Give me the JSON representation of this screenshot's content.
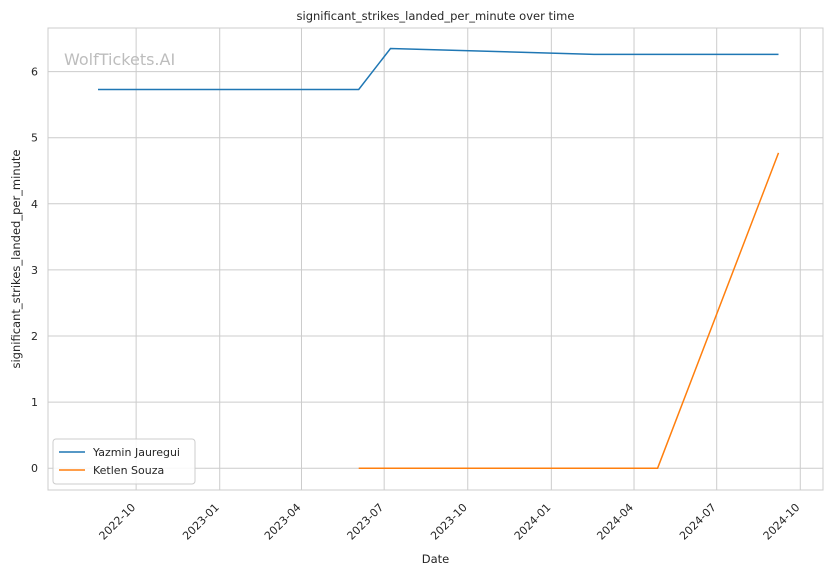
{
  "watermark": "WolfTickets.AI",
  "chart_data": {
    "type": "line",
    "title": "significant_strikes_landed_per_minute over time",
    "xlabel": "Date",
    "ylabel": "significant_strikes_landed_per_minute",
    "x_ticks": [
      "2022-10",
      "2023-01",
      "2023-04",
      "2023-07",
      "2023-10",
      "2024-01",
      "2024-04",
      "2024-07",
      "2024-10"
    ],
    "y_ticks": [
      0,
      1,
      2,
      3,
      4,
      5,
      6
    ],
    "xlim": [
      "2022-06-26",
      "2024-10-26"
    ],
    "ylim": [
      -0.33,
      6.66
    ],
    "grid": true,
    "legend_position": "lower-left",
    "series": [
      {
        "name": "Yazmin Jauregui",
        "color": "#1f77b4",
        "x": [
          "2022-08-20",
          "2023-06-03",
          "2023-07-08",
          "2024-02-17",
          "2024-09-07"
        ],
        "y": [
          5.73,
          5.73,
          6.35,
          6.26,
          6.26
        ]
      },
      {
        "name": "Ketlen Souza",
        "color": "#ff7f0e",
        "x": [
          "2023-06-03",
          "2024-04-27",
          "2024-09-07"
        ],
        "y": [
          0.0,
          0.0,
          4.77
        ]
      }
    ]
  }
}
